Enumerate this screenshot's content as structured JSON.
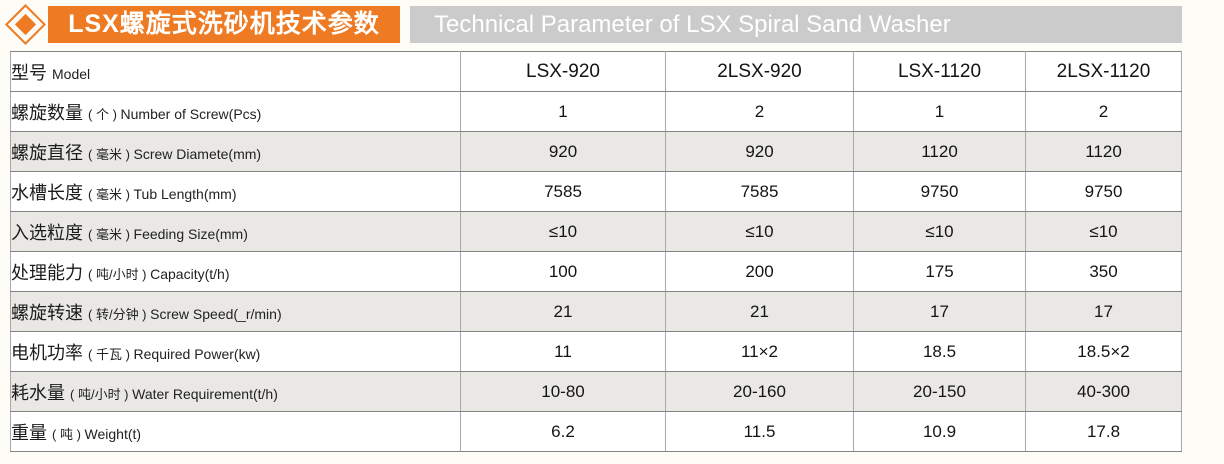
{
  "header": {
    "title_zh": "LSX螺旋式洗砂机技术参数",
    "title_en": "Technical Parameter of LSX Spiral Sand Washer"
  },
  "colors": {
    "accent_orange": "#ee7b23",
    "title_gray_bg": "#cbcbcb",
    "row_alt_bg": "#e9e8e4",
    "border_dark": "#6e6e6e",
    "border_light": "#a8a8a8",
    "text": "#1c1c1c"
  },
  "table": {
    "rows": [
      {
        "zh": "型号",
        "unit": "",
        "en": "Model",
        "values": [
          "LSX-920",
          "2LSX-920",
          "LSX-1120",
          "2LSX-1120"
        ]
      },
      {
        "zh": "螺旋数量",
        "unit": "( 个 ) ",
        "en": "Number of  Screw(Pcs)",
        "values": [
          "1",
          "2",
          "1",
          "2"
        ]
      },
      {
        "zh": "螺旋直径",
        "unit": "( 毫米 ) ",
        "en": "Screw Diamete(mm)",
        "values": [
          "920",
          "920",
          "1120",
          "1120"
        ]
      },
      {
        "zh": "水槽长度",
        "unit": "( 毫米 ) ",
        "en": "Tub Length(mm)",
        "values": [
          "7585",
          "7585",
          "9750",
          "9750"
        ]
      },
      {
        "zh": "入选粒度",
        "unit": "( 毫米 ) ",
        "en": "Feeding Size(mm)",
        "values": [
          "≤10",
          "≤10",
          "≤10",
          "≤10"
        ]
      },
      {
        "zh": "处理能力",
        "unit": "( 吨/小时 ) ",
        "en": "Capacity(t/h)",
        "values": [
          "100",
          "200",
          "175",
          "350"
        ]
      },
      {
        "zh": "螺旋转速",
        "unit": "( 转/分钟 ) ",
        "en": "Screw Speed(_r/min)",
        "values": [
          "21",
          "21",
          "17",
          "17"
        ]
      },
      {
        "zh": "电机功率",
        "unit": "( 千瓦 ) ",
        "en": "Required Power(kw)",
        "values": [
          "11",
          "11×2",
          "18.5",
          "18.5×2"
        ]
      },
      {
        "zh": "耗水量",
        "unit": "( 吨/小时 ) ",
        "en": "Water Requirement(t/h)",
        "values": [
          "10-80",
          "20-160",
          "20-150",
          "40-300"
        ]
      },
      {
        "zh": "重量",
        "unit": "( 吨 ) ",
        "en": "Weight(t)",
        "values": [
          "6.2",
          "11.5",
          "10.9",
          "17.8"
        ]
      }
    ]
  }
}
